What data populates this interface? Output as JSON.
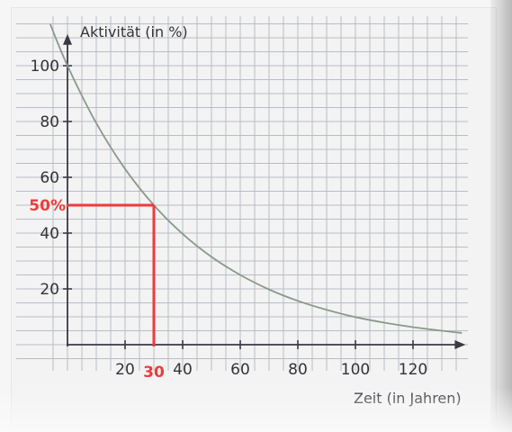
{
  "chart_data": {
    "type": "line",
    "ylabel": "Aktivität (in %)",
    "xlabel": "Zeit (in Jahren)",
    "xlim": [
      -9,
      137
    ],
    "ylim": [
      0,
      112
    ],
    "x_ticks": [
      20,
      40,
      60,
      80,
      100,
      120
    ],
    "y_ticks": [
      20,
      40,
      60,
      80,
      100
    ],
    "grid": true,
    "grid_step": 5,
    "series": [
      {
        "function": "100 * 0.5^(x/30)",
        "x": [
          -6,
          0,
          10,
          20,
          30,
          40,
          50,
          60,
          70,
          80,
          90,
          100,
          110,
          120,
          130,
          137
        ],
        "y": [
          114.9,
          100,
          79.4,
          63,
          50,
          39.7,
          31.5,
          25,
          19.8,
          15.7,
          12.5,
          9.9,
          7.9,
          6.3,
          5,
          4.2
        ],
        "color": "#8a9a8a"
      }
    ],
    "annotations": [
      {
        "type": "guide-lines",
        "x": 30,
        "y": 50,
        "x_label": "30",
        "y_label": "50%",
        "color": "#ef3b3b"
      }
    ]
  }
}
